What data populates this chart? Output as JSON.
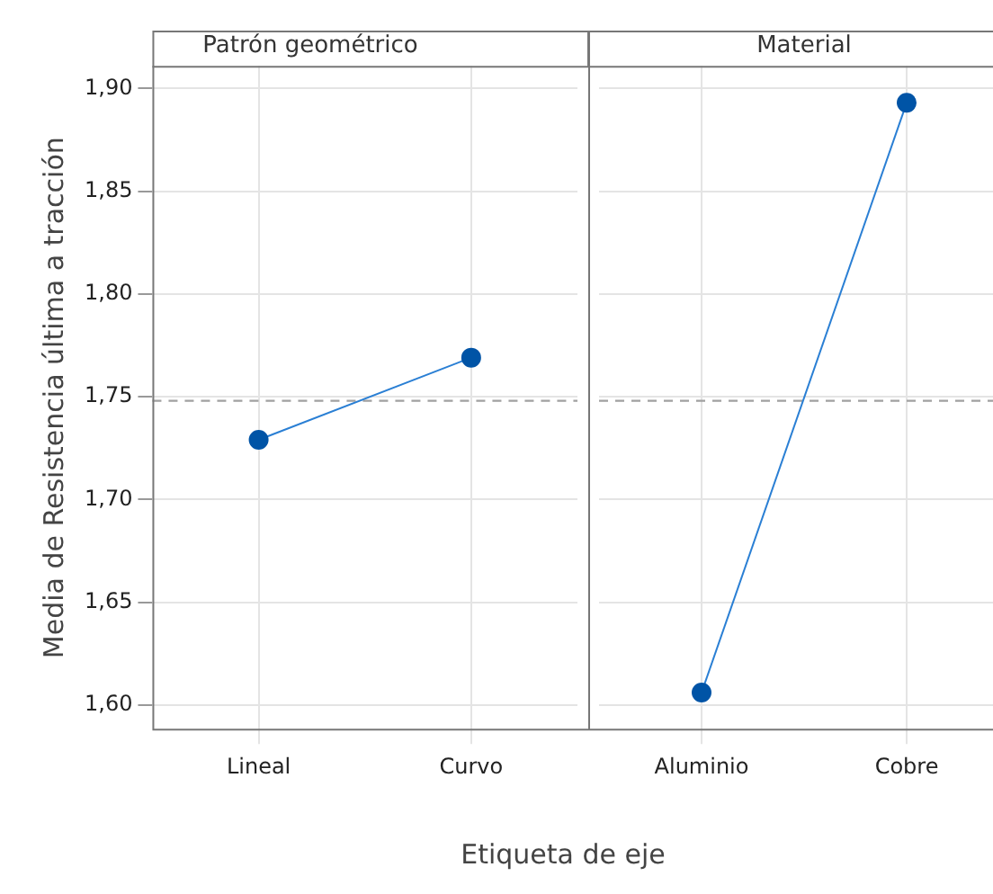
{
  "chart_data": [
    {
      "type": "line",
      "title": "Patrón geométrico",
      "ylabel": "Media de Resistencia última a tracción",
      "xlabel": "Etiqueta de eje",
      "categories": [
        "Lineal",
        "Curvo"
      ],
      "series": [
        {
          "color": "#0054a6",
          "values": [
            1.729,
            1.769
          ]
        }
      ],
      "ylim": [
        1.588,
        1.911
      ],
      "yticks": [
        {
          "value": 1.6,
          "label": "1,60"
        },
        {
          "value": 1.65,
          "label": "1,65"
        },
        {
          "value": 1.7,
          "label": "1,70"
        },
        {
          "value": 1.75,
          "label": "1,75"
        },
        {
          "value": 1.8,
          "label": "1,80"
        },
        {
          "value": 1.85,
          "label": "1,85"
        },
        {
          "value": 1.9,
          "label": "1,90"
        }
      ],
      "ref_lines": [
        {
          "axis": "y",
          "value": 1.748,
          "color": "#a0a0a0",
          "line_style": "dashed"
        }
      ],
      "grid": true,
      "marker": "circle",
      "legend": false
    },
    {
      "type": "line",
      "title": "Material",
      "categories": [
        "Aluminio",
        "Cobre"
      ],
      "series": [
        {
          "color": "#0054a6",
          "values": [
            1.606,
            1.893
          ]
        }
      ],
      "ylim": [
        1.588,
        1.911
      ],
      "yticks": [
        1.6,
        1.65,
        1.7,
        1.75,
        1.8,
        1.85,
        1.9
      ],
      "ref_lines": [
        {
          "axis": "y",
          "value": 1.748,
          "color": "#a0a0a0",
          "line_style": "dashed"
        }
      ],
      "grid": true,
      "marker": "circle",
      "legend": false,
      "tick_labels": "x"
    }
  ]
}
